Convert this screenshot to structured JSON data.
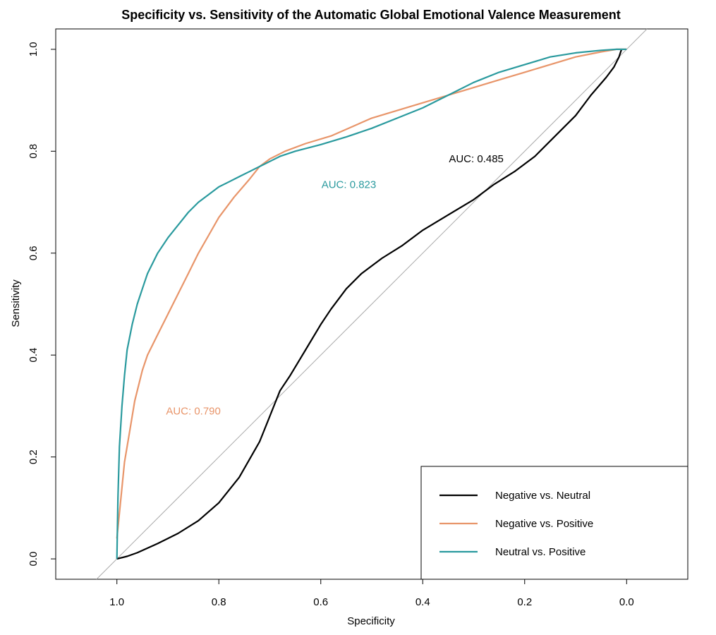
{
  "chart_data": {
    "type": "line",
    "title": "Specificity vs. Sensitivity of the Automatic Global Emotional Valence Measurement",
    "xlabel": "Specificity",
    "ylabel": "Sensitivity",
    "xlim": [
      1.12,
      -0.12
    ],
    "ylim": [
      -0.04,
      1.04
    ],
    "x_reversed": true,
    "x_ticks": [
      "1.0",
      "0.8",
      "0.6",
      "0.4",
      "0.2",
      "0.0"
    ],
    "y_ticks": [
      "0.0",
      "0.2",
      "0.4",
      "0.6",
      "0.8",
      "1.0"
    ],
    "grid": false,
    "legend_position": "bottom-right",
    "reference_line": {
      "from": [
        1,
        0
      ],
      "to": [
        0,
        1
      ],
      "color": "#aaaaaa"
    },
    "series": [
      {
        "name": "Negative vs. Neutral",
        "color": "#000000",
        "auc_label": "AUC: 0.485",
        "auc_position": [
          0.295,
          0.785
        ],
        "specificity": [
          1.0,
          0.98,
          0.96,
          0.92,
          0.88,
          0.84,
          0.8,
          0.76,
          0.72,
          0.7,
          0.68,
          0.66,
          0.63,
          0.6,
          0.58,
          0.55,
          0.52,
          0.48,
          0.44,
          0.4,
          0.35,
          0.3,
          0.26,
          0.22,
          0.18,
          0.14,
          0.1,
          0.07,
          0.04,
          0.025,
          0.015,
          0.01
        ],
        "sensitivity": [
          0.0,
          0.005,
          0.012,
          0.03,
          0.05,
          0.075,
          0.11,
          0.16,
          0.23,
          0.28,
          0.33,
          0.36,
          0.41,
          0.46,
          0.49,
          0.53,
          0.56,
          0.59,
          0.615,
          0.645,
          0.675,
          0.705,
          0.735,
          0.76,
          0.79,
          0.83,
          0.87,
          0.91,
          0.945,
          0.965,
          0.985,
          1.0
        ]
      },
      {
        "name": "Negative vs. Positive",
        "color": "#E8956A",
        "auc_label": "AUC: 0.790",
        "auc_position": [
          0.85,
          0.29
        ],
        "specificity": [
          1.0,
          0.995,
          0.99,
          0.985,
          0.975,
          0.965,
          0.95,
          0.94,
          0.92,
          0.9,
          0.88,
          0.86,
          0.84,
          0.82,
          0.8,
          0.77,
          0.74,
          0.72,
          0.7,
          0.67,
          0.63,
          0.58,
          0.5,
          0.4,
          0.3,
          0.25,
          0.2,
          0.15,
          0.1,
          0.05,
          0.02,
          0.0
        ],
        "sensitivity": [
          0.04,
          0.09,
          0.14,
          0.19,
          0.25,
          0.31,
          0.37,
          0.4,
          0.44,
          0.48,
          0.52,
          0.56,
          0.6,
          0.635,
          0.67,
          0.71,
          0.745,
          0.77,
          0.785,
          0.8,
          0.815,
          0.83,
          0.865,
          0.895,
          0.925,
          0.94,
          0.955,
          0.97,
          0.985,
          0.995,
          1.0,
          1.0
        ]
      },
      {
        "name": "Neutral vs. Positive",
        "color": "#2A9A9E",
        "auc_label": "AUC: 0.823",
        "auc_position": [
          0.545,
          0.735
        ],
        "specificity": [
          1.0,
          0.998,
          0.995,
          0.99,
          0.985,
          0.98,
          0.97,
          0.96,
          0.95,
          0.94,
          0.93,
          0.92,
          0.9,
          0.88,
          0.86,
          0.84,
          0.82,
          0.8,
          0.78,
          0.76,
          0.74,
          0.71,
          0.68,
          0.65,
          0.6,
          0.55,
          0.5,
          0.45,
          0.4,
          0.35,
          0.3,
          0.25,
          0.2,
          0.15,
          0.1,
          0.05,
          0.02,
          0.0
        ],
        "sensitivity": [
          0.0,
          0.12,
          0.22,
          0.3,
          0.36,
          0.41,
          0.46,
          0.5,
          0.53,
          0.56,
          0.58,
          0.6,
          0.63,
          0.655,
          0.68,
          0.7,
          0.715,
          0.73,
          0.74,
          0.75,
          0.76,
          0.775,
          0.79,
          0.8,
          0.813,
          0.828,
          0.845,
          0.865,
          0.885,
          0.91,
          0.935,
          0.955,
          0.97,
          0.985,
          0.993,
          0.998,
          1.0,
          1.0
        ]
      }
    ]
  }
}
